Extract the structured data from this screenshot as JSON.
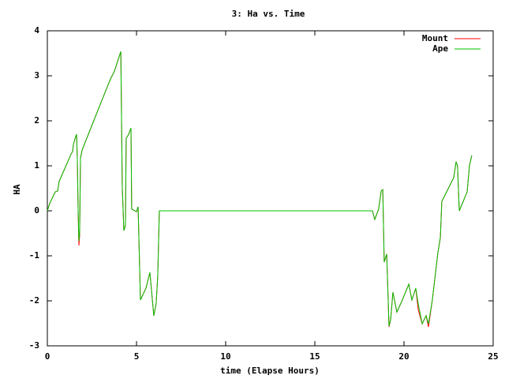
{
  "chart_data": {
    "type": "line",
    "title": "3: Ha vs. Time",
    "x_label": "time (Elapse Hours)",
    "y_label": "HA",
    "x": [
      0,
      0.13,
      0.44,
      0.58,
      0.66,
      1.33,
      1.42,
      1.46,
      1.55,
      1.64,
      1.68,
      1.73,
      1.77,
      1.81,
      1.86,
      1.95,
      2.65,
      2.88,
      3.54,
      3.76,
      3.98,
      4.12,
      4.2,
      4.29,
      4.38,
      4.42,
      4.56,
      4.69,
      4.73,
      5.0,
      5.09,
      5.22,
      5.53,
      5.75,
      5.97,
      6.1,
      6.19,
      6.28,
      18.23,
      18.36,
      18.58,
      18.72,
      18.81,
      18.89,
      19.03,
      19.16,
      19.25,
      19.38,
      19.6,
      19.91,
      20.27,
      20.44,
      20.66,
      20.8,
      21.02,
      21.24,
      21.37,
      21.59,
      21.9,
      22.04,
      22.12,
      22.35,
      22.79,
      22.92,
      23.0,
      23.1,
      23.54,
      23.67,
      23.8
    ],
    "series": [
      {
        "name": "Mount",
        "color": "#ff0000",
        "values": [
          0,
          0.16,
          0.42,
          0.44,
          0.65,
          1.26,
          1.32,
          1.47,
          1.6,
          1.7,
          1.18,
          -0.1,
          -0.77,
          -0.55,
          1.18,
          1.35,
          2.05,
          2.28,
          2.93,
          3.1,
          3.37,
          3.54,
          0.56,
          -0.44,
          -0.32,
          1.61,
          1.7,
          1.84,
          0.04,
          -0.02,
          0.09,
          -1.98,
          -1.72,
          -1.37,
          -2.33,
          -2.07,
          -1.46,
          0,
          0,
          -0.19,
          0.04,
          0.44,
          0.47,
          -1.14,
          -0.96,
          -2.58,
          -2.42,
          -1.81,
          -2.25,
          -1.98,
          -1.63,
          -1.98,
          -1.72,
          -2.2,
          -2.51,
          -2.33,
          -2.58,
          -1.98,
          -0.93,
          -0.6,
          0.21,
          0.39,
          0.74,
          1.09,
          1.0,
          0,
          0.42,
          1.0,
          1.23
        ]
      },
      {
        "name": "Ape",
        "color": "#00c000",
        "values": [
          0,
          0.16,
          0.42,
          0.44,
          0.65,
          1.26,
          1.32,
          1.47,
          1.6,
          1.7,
          1.18,
          -0.05,
          -0.67,
          -0.49,
          1.18,
          1.35,
          2.05,
          2.28,
          2.93,
          3.1,
          3.37,
          3.54,
          0.56,
          -0.44,
          -0.32,
          1.61,
          1.7,
          1.84,
          0.04,
          -0.02,
          0.09,
          -1.98,
          -1.72,
          -1.37,
          -2.33,
          -2.07,
          -1.46,
          0,
          0,
          -0.19,
          0.04,
          0.44,
          0.47,
          -1.14,
          -0.96,
          -2.56,
          -2.42,
          -1.81,
          -2.25,
          -1.98,
          -1.63,
          -1.98,
          -1.72,
          -2.07,
          -2.51,
          -2.33,
          -2.51,
          -1.98,
          -0.93,
          -0.58,
          0.21,
          0.39,
          0.74,
          1.09,
          1.0,
          0,
          0.42,
          1.0,
          1.23
        ]
      }
    ],
    "xlim": [
      0,
      25
    ],
    "xticks": [
      0,
      5,
      10,
      15,
      20,
      25
    ],
    "ylim": [
      -3,
      4
    ],
    "yticks": [
      -3,
      -2,
      -1,
      0,
      1,
      2,
      3,
      4
    ],
    "legend": "top-right",
    "grid": false
  }
}
